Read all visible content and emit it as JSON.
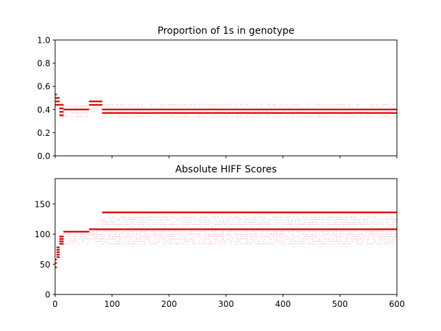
{
  "chart_data": [
    {
      "type": "scatter",
      "title": "Proportion of 1s in genotype",
      "xlim": [
        0,
        600
      ],
      "ylim": [
        0.0,
        1.0
      ],
      "xticks": [
        0,
        100,
        200,
        300,
        400,
        500,
        600
      ],
      "xtick_labels_visible": false,
      "yticks": [
        0.0,
        0.2,
        0.4,
        0.6,
        0.8,
        1.0
      ],
      "ytick_labels": [
        "0.0",
        "0.2",
        "0.4",
        "0.6",
        "0.8",
        "1.0"
      ],
      "color": "#e00000",
      "series": [
        {
          "segments": [
            {
              "x": [
                0,
                3
              ],
              "levels": [
                0.53
              ],
              "dense": true
            },
            {
              "x": [
                0,
                8
              ],
              "levels": [
                0.5,
                0.47,
                0.44
              ],
              "dense": true
            },
            {
              "x": [
                8,
                15
              ],
              "levels": [
                0.44,
                0.41,
                0.38,
                0.35
              ],
              "dense": true
            },
            {
              "x": [
                15,
                60
              ],
              "levels": [
                0.4
              ],
              "dense": true
            },
            {
              "x": [
                15,
                60
              ],
              "levels": [
                0.43,
                0.37,
                0.34
              ],
              "dense": false
            },
            {
              "x": [
                60,
                83
              ],
              "levels": [
                0.47,
                0.44
              ],
              "dense": true
            },
            {
              "x": [
                60,
                83
              ],
              "levels": [
                0.5,
                0.41,
                0.38
              ],
              "dense": false
            },
            {
              "x": [
                83,
                600
              ],
              "levels": [
                0.4,
                0.37
              ],
              "dense": true
            },
            {
              "x": [
                83,
                600
              ],
              "levels": [
                0.44,
                0.34
              ],
              "dense": false
            }
          ]
        }
      ]
    },
    {
      "type": "scatter",
      "title": "Absolute HIFF Scores",
      "xlim": [
        0,
        600
      ],
      "ylim": [
        0,
        192
      ],
      "xticks": [
        0,
        100,
        200,
        300,
        400,
        500,
        600
      ],
      "xtick_labels": [
        "0",
        "100",
        "200",
        "300",
        "400",
        "500",
        "600"
      ],
      "yticks": [
        0,
        50,
        100,
        150
      ],
      "ytick_labels": [
        "0",
        "50",
        "100",
        "150"
      ],
      "color": "#e00000",
      "series": [
        {
          "segments": [
            {
              "x": [
                0,
                3
              ],
              "levels": [
                45,
                52,
                58
              ],
              "dense": true
            },
            {
              "x": [
                3,
                8
              ],
              "levels": [
                62,
                66,
                70,
                74,
                78
              ],
              "dense": true
            },
            {
              "x": [
                8,
                15
              ],
              "levels": [
                84,
                88,
                92,
                96
              ],
              "dense": true
            },
            {
              "x": [
                15,
                60
              ],
              "levels": [
                104
              ],
              "dense": true
            },
            {
              "x": [
                15,
                60
              ],
              "levels": [
                100,
                96,
                92,
                88,
                84
              ],
              "dense": false
            },
            {
              "x": [
                60,
                83
              ],
              "levels": [
                108
              ],
              "dense": true
            },
            {
              "x": [
                60,
                83
              ],
              "levels": [
                104,
                100,
                96,
                92,
                88
              ],
              "dense": false
            },
            {
              "x": [
                83,
                600
              ],
              "levels": [
                136,
                108
              ],
              "dense": true
            },
            {
              "x": [
                83,
                600
              ],
              "levels": [
                128,
                124,
                120,
                116,
                104,
                100,
                96,
                92,
                88,
                84
              ],
              "dense": false
            }
          ]
        }
      ]
    }
  ]
}
